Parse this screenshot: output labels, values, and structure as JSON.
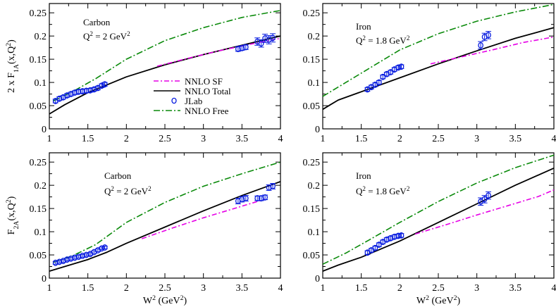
{
  "chart_data": [
    {
      "type": "line",
      "panel": "top-left",
      "label_lines": [
        "Carbon",
        "Q|2| = 2 GeV|2|"
      ],
      "xlabel": "",
      "ylabel": "2 x F|1A|(x,Q|2|)",
      "xlim": [
        1,
        4
      ],
      "ylim": [
        0,
        0.27
      ],
      "x_ticks": [
        "1",
        "1.5",
        "2",
        "2.5",
        "3",
        "3.5",
        "4"
      ],
      "y_ticks": [
        "0",
        "0.05",
        "0.1",
        "0.15",
        "0.2",
        "0.25"
      ],
      "legend": {
        "position": "center-right",
        "entries": [
          {
            "label": "NNLO SF",
            "key": "sf"
          },
          {
            "label": "NNLO Total",
            "key": "total"
          },
          {
            "label": "JLab",
            "key": "jlab"
          },
          {
            "label": "NNLO Free",
            "key": "free"
          }
        ]
      },
      "series": [
        {
          "key": "free",
          "x": [
            1.05,
            1.3,
            1.6,
            2.0,
            2.5,
            3.0,
            3.5,
            4.0
          ],
          "y": [
            0.06,
            0.08,
            0.108,
            0.15,
            0.19,
            0.218,
            0.24,
            0.255
          ]
        },
        {
          "key": "total",
          "x": [
            1.0,
            1.2,
            1.5,
            2.0,
            2.5,
            3.0,
            3.5,
            4.0
          ],
          "y": [
            0.032,
            0.052,
            0.078,
            0.112,
            0.138,
            0.16,
            0.18,
            0.2
          ]
        },
        {
          "key": "sf",
          "x": [
            2.4,
            2.8,
            3.2,
            3.6,
            4.0
          ],
          "y": [
            0.135,
            0.152,
            0.168,
            0.182,
            0.195
          ]
        }
      ],
      "jlab": {
        "x": [
          1.08,
          1.13,
          1.18,
          1.23,
          1.28,
          1.33,
          1.38,
          1.43,
          1.48,
          1.53,
          1.58,
          1.63,
          1.68,
          1.72,
          3.45,
          3.5,
          3.55,
          3.7,
          3.75,
          3.8,
          3.85,
          3.9
        ],
        "y": [
          0.06,
          0.065,
          0.068,
          0.072,
          0.075,
          0.078,
          0.08,
          0.081,
          0.082,
          0.083,
          0.085,
          0.088,
          0.093,
          0.096,
          0.172,
          0.174,
          0.176,
          0.188,
          0.184,
          0.195,
          0.192,
          0.196
        ],
        "err": [
          0.004,
          0.004,
          0.004,
          0.004,
          0.004,
          0.004,
          0.004,
          0.004,
          0.004,
          0.004,
          0.004,
          0.004,
          0.004,
          0.004,
          0.005,
          0.005,
          0.005,
          0.008,
          0.008,
          0.009,
          0.009,
          0.009
        ]
      }
    },
    {
      "type": "line",
      "panel": "top-right",
      "label_lines": [
        "Iron",
        "Q|2| = 1.8 GeV|2|"
      ],
      "xlabel": "",
      "ylabel": "",
      "xlim": [
        1,
        4
      ],
      "ylim": [
        0,
        0.27
      ],
      "x_ticks": [
        "1",
        "1.5",
        "2",
        "2.5",
        "3",
        "3.5",
        "4"
      ],
      "y_ticks": [
        "0",
        "0.05",
        "0.1",
        "0.15",
        "0.2",
        "0.25"
      ],
      "series": [
        {
          "key": "free",
          "x": [
            1.0,
            1.3,
            1.6,
            2.0,
            2.5,
            3.0,
            3.5,
            4.0
          ],
          "y": [
            0.07,
            0.1,
            0.13,
            0.17,
            0.205,
            0.232,
            0.252,
            0.268
          ]
        },
        {
          "key": "total",
          "x": [
            1.0,
            1.1,
            1.2,
            1.5,
            2.0,
            2.5,
            3.0,
            3.5,
            4.0
          ],
          "y": [
            0.042,
            0.052,
            0.062,
            0.08,
            0.11,
            0.14,
            0.168,
            0.195,
            0.218
          ]
        },
        {
          "key": "sf",
          "x": [
            2.4,
            2.8,
            3.2,
            3.6,
            4.0
          ],
          "y": [
            0.14,
            0.155,
            0.17,
            0.186,
            0.198
          ]
        }
      ],
      "jlab": {
        "x": [
          1.58,
          1.63,
          1.68,
          1.73,
          1.78,
          1.83,
          1.88,
          1.93,
          1.98,
          2.02,
          3.05,
          3.1,
          3.15
        ],
        "y": [
          0.085,
          0.09,
          0.095,
          0.1,
          0.112,
          0.118,
          0.122,
          0.128,
          0.132,
          0.134,
          0.18,
          0.198,
          0.202
        ],
        "err": [
          0.004,
          0.004,
          0.004,
          0.004,
          0.004,
          0.004,
          0.004,
          0.004,
          0.004,
          0.004,
          0.008,
          0.008,
          0.008
        ]
      }
    },
    {
      "type": "line",
      "panel": "bottom-left",
      "label_lines": [
        "Carbon",
        "Q|2| = 2 GeV|2|"
      ],
      "xlabel": "W|2| (GeV|2|)",
      "ylabel": "F|2A|(x,Q|2|)",
      "xlim": [
        1,
        4
      ],
      "ylim": [
        0,
        0.27
      ],
      "x_ticks": [
        "1",
        "1.5",
        "2",
        "2.5",
        "3",
        "3.5",
        "4"
      ],
      "y_ticks": [
        "0",
        "0.05",
        "0.1",
        "0.15",
        "0.2",
        "0.25"
      ],
      "series": [
        {
          "key": "free",
          "x": [
            1.05,
            1.3,
            1.6,
            2.0,
            2.5,
            3.0,
            3.5,
            4.0
          ],
          "y": [
            0.034,
            0.048,
            0.072,
            0.12,
            0.163,
            0.198,
            0.225,
            0.25
          ]
        },
        {
          "key": "total",
          "x": [
            1.0,
            1.2,
            1.5,
            1.75,
            2.0,
            2.5,
            3.0,
            3.5,
            4.0
          ],
          "y": [
            0.015,
            0.025,
            0.04,
            0.056,
            0.075,
            0.11,
            0.145,
            0.178,
            0.208
          ]
        },
        {
          "key": "sf",
          "x": [
            2.2,
            2.6,
            3.0,
            3.4,
            3.8
          ],
          "y": [
            0.085,
            0.108,
            0.13,
            0.15,
            0.17
          ]
        }
      ],
      "jlab": {
        "x": [
          1.08,
          1.13,
          1.18,
          1.23,
          1.28,
          1.33,
          1.38,
          1.43,
          1.48,
          1.53,
          1.58,
          1.63,
          1.68,
          1.72,
          3.45,
          3.5,
          3.55,
          3.7,
          3.75,
          3.8,
          3.85,
          3.9
        ],
        "y": [
          0.033,
          0.035,
          0.037,
          0.04,
          0.042,
          0.044,
          0.046,
          0.048,
          0.05,
          0.052,
          0.056,
          0.06,
          0.064,
          0.066,
          0.166,
          0.17,
          0.172,
          0.172,
          0.172,
          0.174,
          0.195,
          0.198
        ],
        "err": [
          0.003,
          0.003,
          0.003,
          0.003,
          0.003,
          0.003,
          0.003,
          0.003,
          0.003,
          0.003,
          0.003,
          0.003,
          0.003,
          0.003,
          0.006,
          0.006,
          0.006,
          0.005,
          0.005,
          0.005,
          0.006,
          0.006
        ]
      }
    },
    {
      "type": "line",
      "panel": "bottom-right",
      "label_lines": [
        "Iron",
        "Q|2| = 1.8 GeV|2|"
      ],
      "xlabel": "W|2| (GeV|2|)",
      "ylabel": "",
      "xlim": [
        1,
        4
      ],
      "ylim": [
        0,
        0.27
      ],
      "x_ticks": [
        "1",
        "1.5",
        "2",
        "2.5",
        "3",
        "3.5",
        "4"
      ],
      "y_ticks": [
        "0",
        "0.05",
        "0.1",
        "0.15",
        "0.2",
        "0.25"
      ],
      "series": [
        {
          "key": "free",
          "x": [
            1.0,
            1.3,
            1.6,
            2.0,
            2.5,
            3.0,
            3.5,
            4.0
          ],
          "y": [
            0.03,
            0.054,
            0.082,
            0.12,
            0.165,
            0.205,
            0.238,
            0.265
          ]
        },
        {
          "key": "total",
          "x": [
            1.0,
            1.2,
            1.5,
            2.0,
            2.5,
            3.0,
            3.5,
            4.0
          ],
          "y": [
            0.015,
            0.028,
            0.045,
            0.08,
            0.12,
            0.16,
            0.2,
            0.237
          ]
        },
        {
          "key": "sf",
          "x": [
            2.2,
            2.6,
            3.0,
            3.4,
            3.8,
            4.0
          ],
          "y": [
            0.095,
            0.115,
            0.136,
            0.156,
            0.176,
            0.19
          ]
        }
      ],
      "jlab": {
        "x": [
          1.58,
          1.63,
          1.68,
          1.73,
          1.78,
          1.83,
          1.88,
          1.93,
          1.98,
          2.02,
          3.05,
          3.1,
          3.15
        ],
        "y": [
          0.055,
          0.06,
          0.065,
          0.072,
          0.078,
          0.083,
          0.086,
          0.089,
          0.091,
          0.092,
          0.165,
          0.17,
          0.178
        ],
        "err": [
          0.004,
          0.004,
          0.004,
          0.004,
          0.004,
          0.004,
          0.004,
          0.004,
          0.004,
          0.004,
          0.008,
          0.008,
          0.008
        ]
      }
    }
  ],
  "styles": {
    "free": {
      "color": "#0a8a0a",
      "dash": "9,3,2,3"
    },
    "total": {
      "color": "#000000",
      "dash": ""
    },
    "sf": {
      "color": "#e600e6",
      "dash": "7,3,2,3"
    },
    "jlab": {
      "color": "#0a1ee0"
    }
  }
}
